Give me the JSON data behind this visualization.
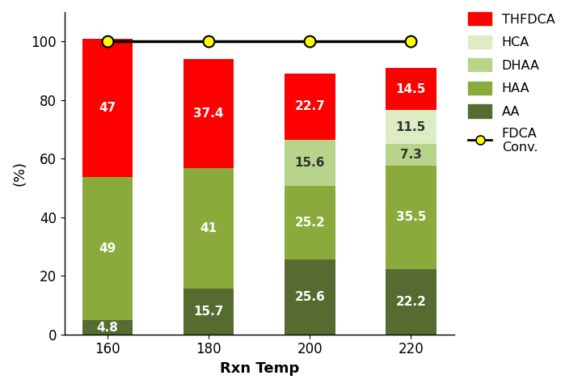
{
  "categories": [
    "160",
    "180",
    "200",
    "220"
  ],
  "AA": [
    4.8,
    15.7,
    25.6,
    22.2
  ],
  "HAA": [
    49,
    41,
    25.2,
    35.5
  ],
  "DHAA": [
    0,
    0,
    15.6,
    7.3
  ],
  "HCA": [
    0,
    0,
    0,
    11.5
  ],
  "THFDCA": [
    47,
    37.4,
    22.7,
    14.5
  ],
  "FDCA_conv": [
    100,
    100,
    100,
    100
  ],
  "colors": {
    "AA": "#556b2f",
    "HAA": "#8aab3c",
    "DHAA": "#b8d48a",
    "HCA": "#deecc4",
    "THFDCA": "#ff0000"
  },
  "fdca_line_color": "#000000",
  "fdca_marker_color": "#ffff00",
  "fdca_marker_edgecolor": "#000000",
  "ylabel": "(%)",
  "xlabel": "Rxn Temp",
  "ylim": [
    0,
    110
  ],
  "yticks": [
    0,
    20,
    40,
    60,
    80,
    100
  ],
  "bar_width": 0.5,
  "legend_labels": [
    "THFDCA",
    "HCA",
    "DHAA",
    "HAA",
    "AA",
    "FDCA\nConv."
  ],
  "legend_colors": [
    "#ff0000",
    "#deecc4",
    "#b8d48a",
    "#8aab3c",
    "#556b2f",
    "#000000"
  ],
  "fontsize_label": 13,
  "fontsize_tick": 12,
  "fontsize_bar": 11
}
